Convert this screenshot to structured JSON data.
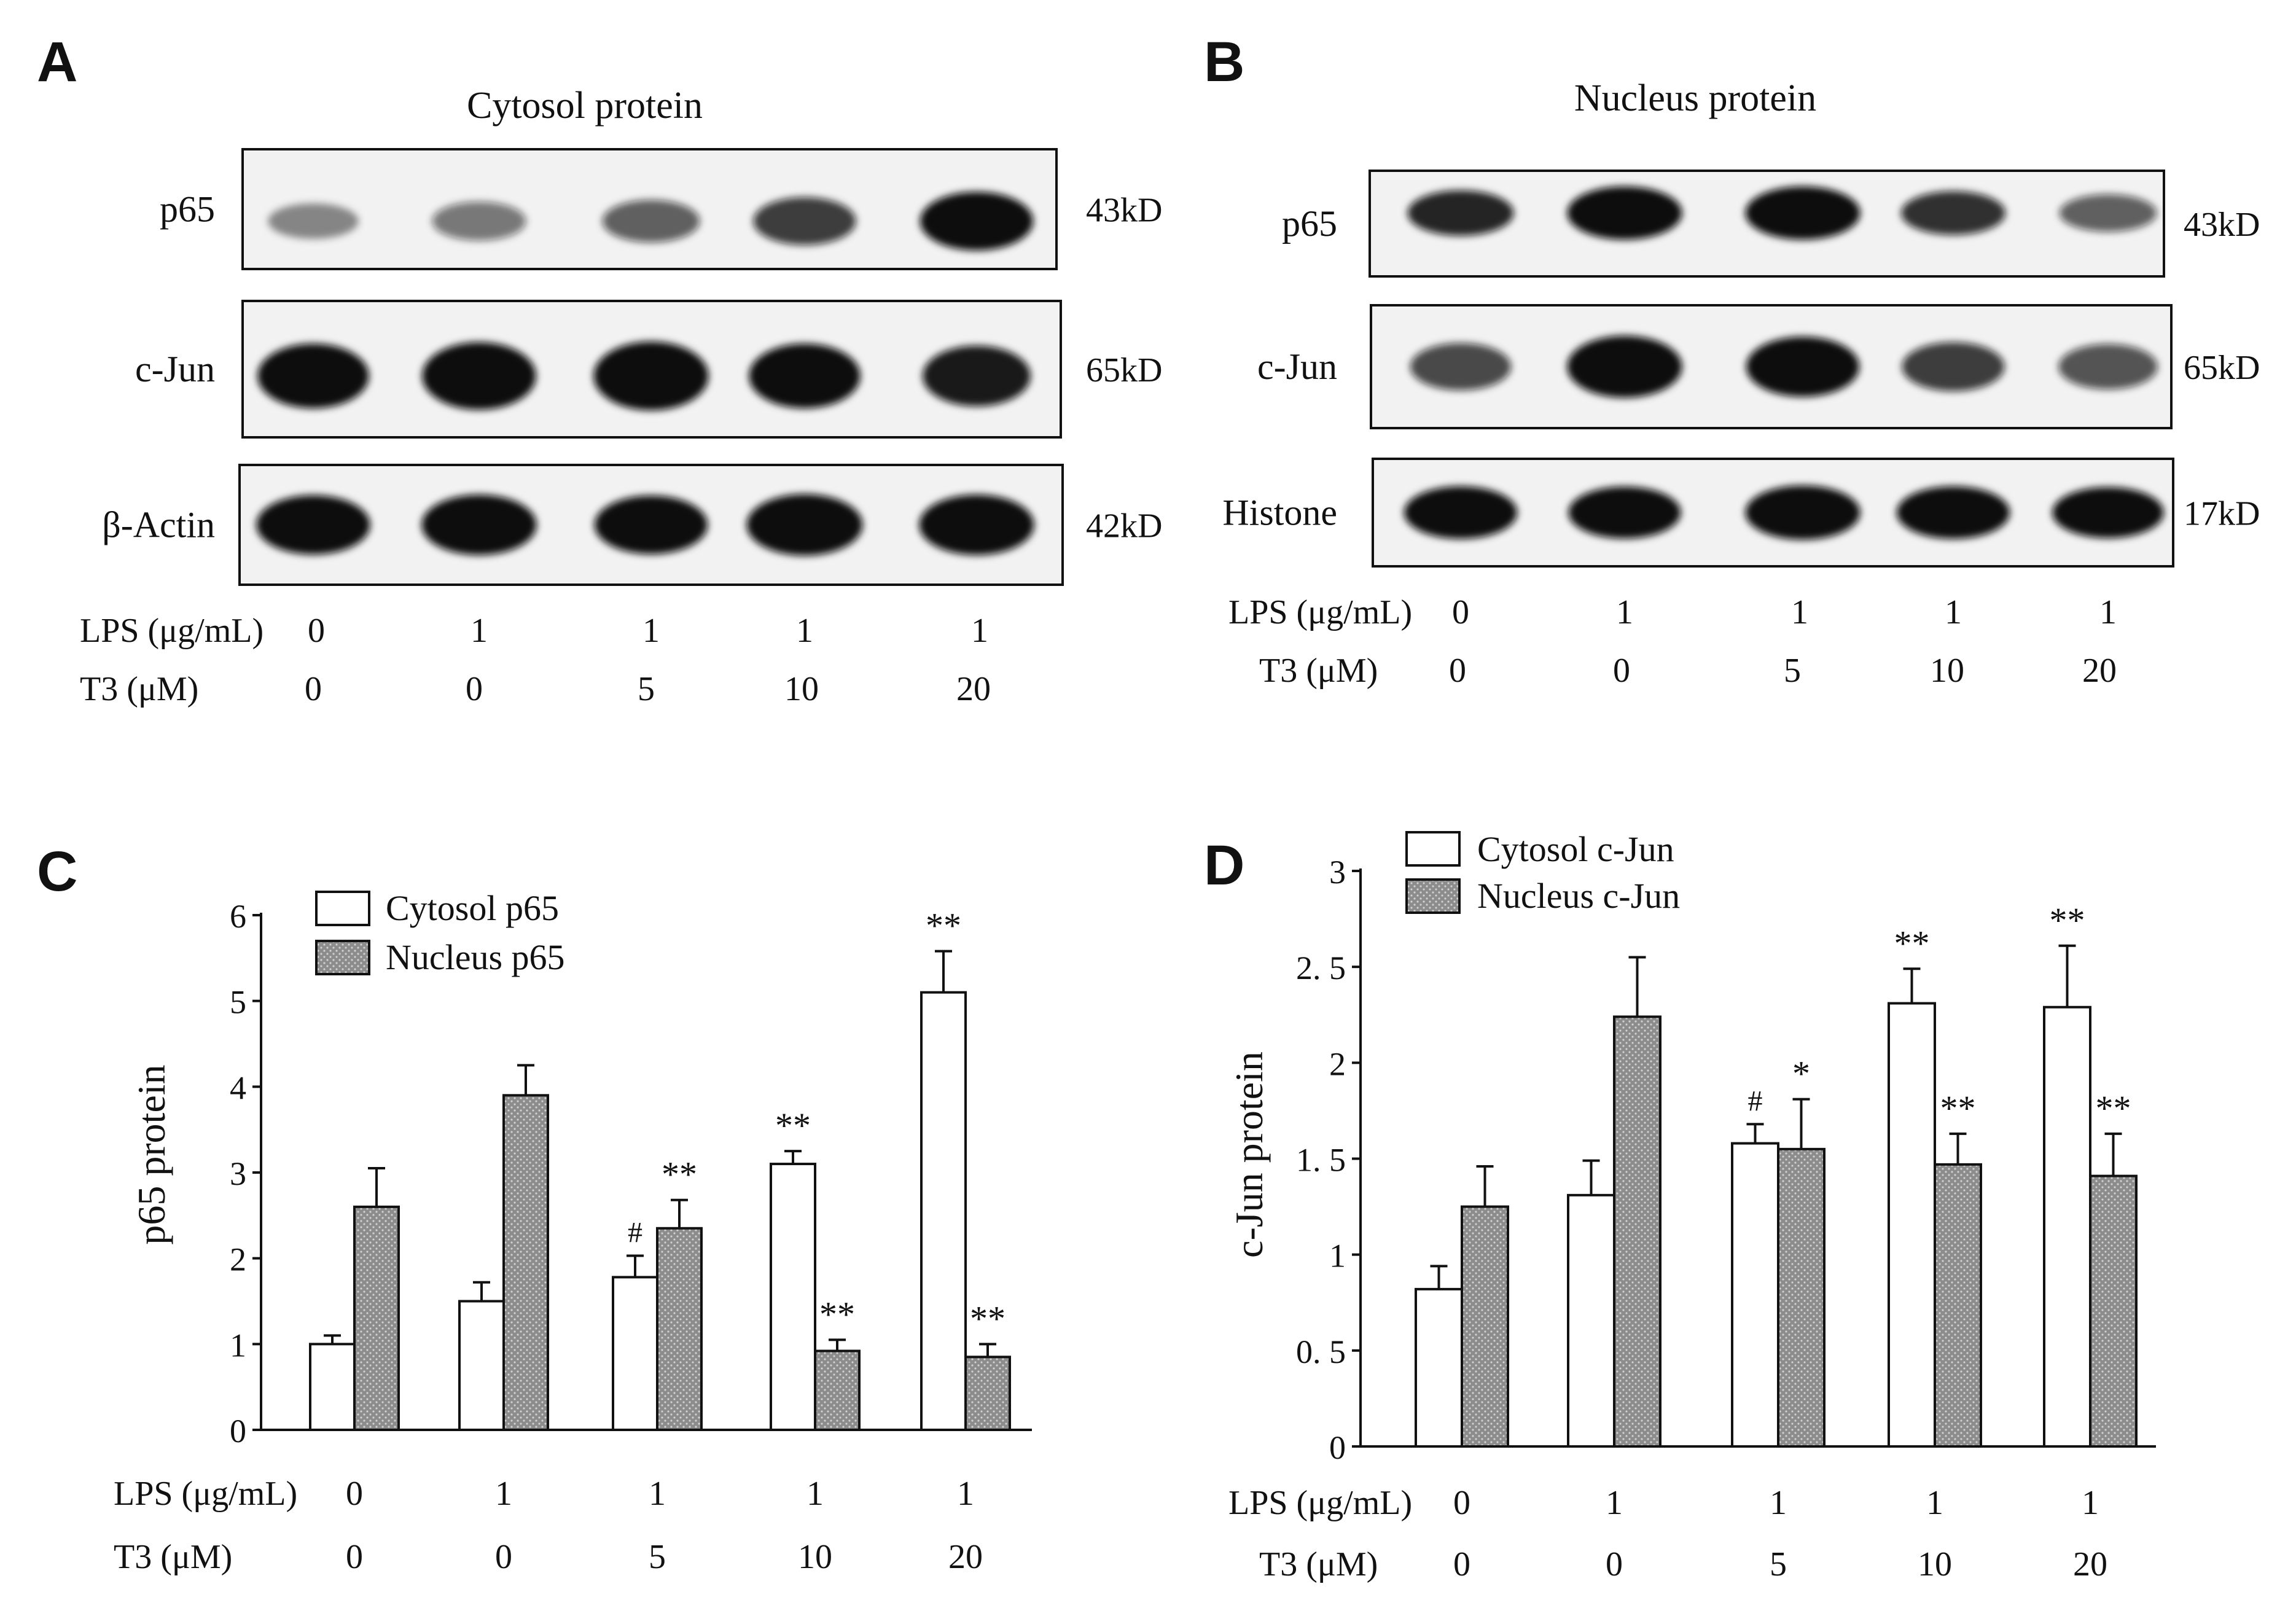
{
  "panels": {
    "A": {
      "letter": "A",
      "title": "Cytosol protein",
      "rows": [
        {
          "label": "p65",
          "mw": "43kD"
        },
        {
          "label": "c-Jun",
          "mw": "65kD"
        },
        {
          "label": "β-Actin",
          "mw": "42kD"
        }
      ],
      "lps_label": "LPS (μg/mL)",
      "lps_values": [
        "0",
        "1",
        "1",
        "1",
        "1"
      ],
      "t3_label": "T3 (μM)",
      "t3_values": [
        "0",
        "0",
        "5",
        "10",
        "20"
      ],
      "band_intensity": [
        [
          0.25,
          0.35,
          0.45,
          0.6,
          0.9
        ],
        [
          0.85,
          0.92,
          0.95,
          0.85,
          0.75
        ],
        [
          0.92,
          0.95,
          0.9,
          0.98,
          0.95
        ]
      ]
    },
    "B": {
      "letter": "B",
      "title": "Nucleus protein",
      "rows": [
        {
          "label": "p65",
          "mw": "43kD"
        },
        {
          "label": "c-Jun",
          "mw": "65kD"
        },
        {
          "label": "Histone",
          "mw": "17kD"
        }
      ],
      "lps_label": "LPS (μg/mL)",
      "lps_values": [
        "0",
        "1",
        "1",
        "1",
        "1"
      ],
      "t3_label": "T3 (μM)",
      "t3_values": [
        "0",
        "0",
        "5",
        "10",
        "20"
      ],
      "band_intensity": [
        [
          0.7,
          0.95,
          0.95,
          0.65,
          0.45
        ],
        [
          0.55,
          0.95,
          0.9,
          0.6,
          0.5
        ],
        [
          0.9,
          0.88,
          0.95,
          0.9,
          0.85
        ]
      ]
    }
  },
  "colors": {
    "bar_open": "#ffffff",
    "bar_hatched": "#8c8c8c",
    "band": "#0e0e0e",
    "ink": "#111111"
  },
  "chart_data": [
    {
      "panel": "C",
      "type": "bar",
      "ylabel": "p65 protein",
      "ylim": [
        0,
        6
      ],
      "yticks": [
        "0",
        "1",
        "2",
        "3",
        "4",
        "5",
        "6"
      ],
      "lps_label": "LPS (μg/mL)",
      "lps_values": [
        "0",
        "1",
        "1",
        "1",
        "1"
      ],
      "t3_label": "T3 (μM)",
      "t3_values": [
        "0",
        "0",
        "5",
        "10",
        "20"
      ],
      "legend_position": "top-left",
      "series": [
        {
          "name": "Cytosol p65",
          "style": "open",
          "values": [
            1.0,
            1.5,
            1.78,
            3.1,
            5.1
          ],
          "errors": [
            0.1,
            0.22,
            0.25,
            0.15,
            0.48
          ],
          "marks": [
            "",
            "",
            "#",
            "**",
            "**"
          ]
        },
        {
          "name": "Nucleus p65",
          "style": "hatched",
          "values": [
            2.6,
            3.9,
            2.35,
            0.92,
            0.85
          ],
          "errors": [
            0.45,
            0.35,
            0.33,
            0.13,
            0.15
          ],
          "marks": [
            "",
            "",
            "**",
            "**",
            "**"
          ]
        }
      ]
    },
    {
      "panel": "D",
      "type": "bar",
      "ylabel": "c-Jun protein",
      "ylim": [
        0,
        3
      ],
      "yticks": [
        "0",
        "0. 5",
        "1",
        "1. 5",
        "2",
        "2. 5",
        "3"
      ],
      "lps_label": "LPS (μg/mL)",
      "lps_values": [
        "0",
        "1",
        "1",
        "1",
        "1"
      ],
      "t3_label": "T3 (μM)",
      "t3_values": [
        "0",
        "0",
        "5",
        "10",
        "20"
      ],
      "legend_position": "top-left",
      "series": [
        {
          "name": "Cytosol c-Jun",
          "style": "open",
          "values": [
            0.82,
            1.31,
            1.58,
            2.31,
            2.29
          ],
          "errors": [
            0.12,
            0.18,
            0.1,
            0.18,
            0.32
          ],
          "marks": [
            "",
            "",
            "#",
            "**",
            "**"
          ]
        },
        {
          "name": "Nucleus c-Jun",
          "style": "hatched",
          "values": [
            1.25,
            2.24,
            1.55,
            1.47,
            1.41
          ],
          "errors": [
            0.21,
            0.31,
            0.26,
            0.16,
            0.22
          ],
          "marks": [
            "",
            "",
            "*",
            "**",
            "**"
          ]
        }
      ]
    }
  ]
}
